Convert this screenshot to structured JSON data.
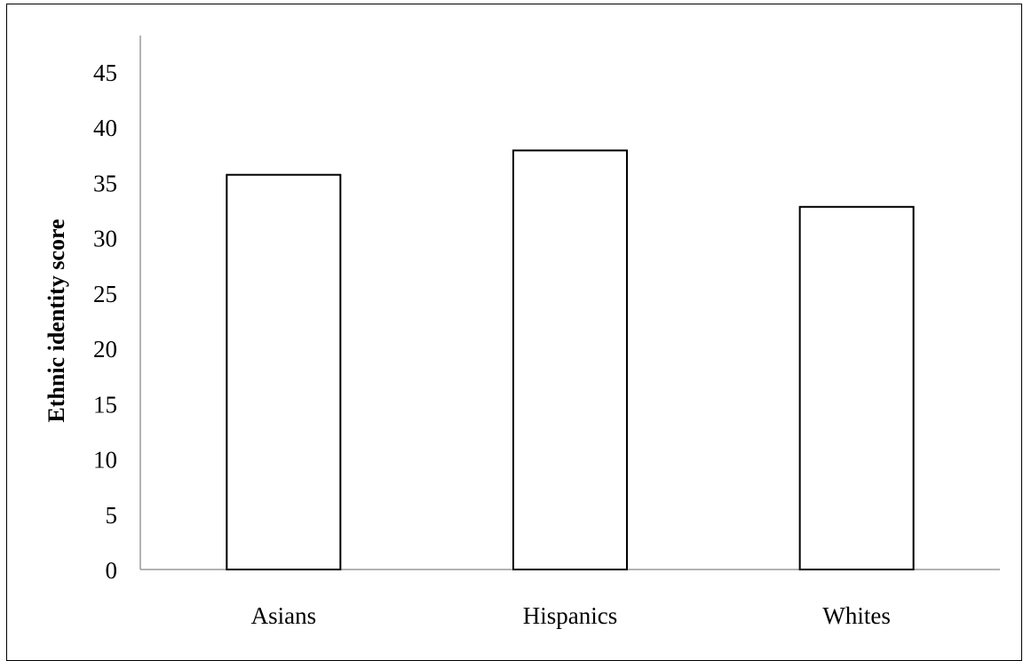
{
  "chart_data": {
    "type": "bar",
    "categories": [
      "Asians",
      "Hispanics",
      "Whites"
    ],
    "values": [
      35.7,
      37.9,
      32.8
    ],
    "title": "",
    "xlabel": "",
    "ylabel": "Ethnic identity score",
    "ylim": [
      0,
      45
    ],
    "yticks": [
      0,
      5,
      10,
      15,
      20,
      25,
      30,
      35,
      40,
      45
    ],
    "grid": false,
    "legend": "none",
    "colors": {
      "bar_fill": "#ffffff",
      "bar_stroke": "#000000",
      "axis": "#9a9a9a"
    }
  }
}
